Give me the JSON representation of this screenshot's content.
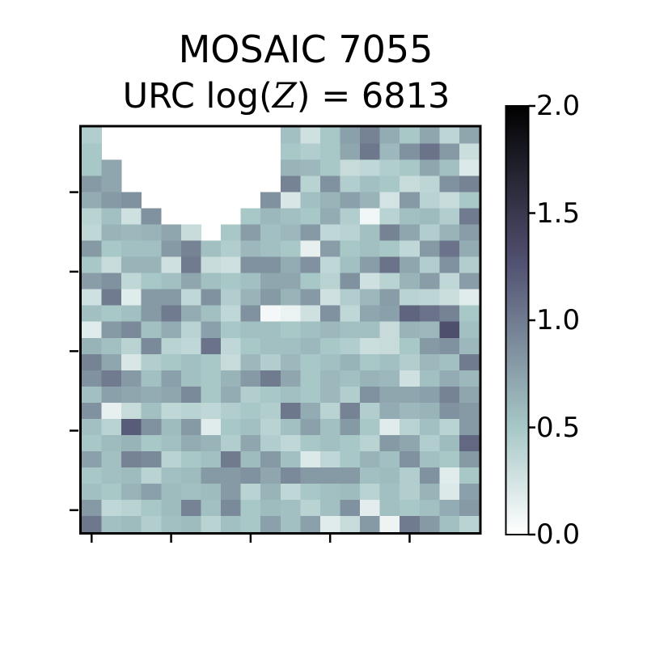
{
  "colors": {
    "background": "#ffffff",
    "text": "#000000",
    "axes_border": "#000000",
    "masked_cell": "#ffffff"
  },
  "header": {
    "title": "MOSAIC 7055",
    "subtitle_text": "URC log(𝒵) = 6813",
    "subtitle_parts": {
      "prefix": "URC log(",
      "symbol": "Z",
      "suffix": ") = 6813"
    }
  },
  "chart_data": {
    "type": "heatmap",
    "title": "MOSAIC 7055",
    "subtitle": "URC log(𝒵) = 6813",
    "colormap": "bone_r",
    "vmin": 0.0,
    "vmax": 2.0,
    "grid": {
      "rows": 25,
      "cols": 20
    },
    "axes": {
      "x_tick_count": 5,
      "y_tick_count": 5,
      "tick_labels_visible": false,
      "xlabel": "",
      "ylabel": ""
    },
    "legend_position": "right-colorbar",
    "colorbar_ticks": [
      "2.0",
      "1.5",
      "1.0",
      "0.5",
      "0.0"
    ],
    "masked_value": null,
    "values": [
      [
        0.45,
        null,
        null,
        null,
        null,
        null,
        null,
        null,
        null,
        null,
        0.55,
        0.28,
        0.5,
        0.76,
        0.95,
        0.68,
        0.5,
        0.72,
        0.38,
        0.72
      ],
      [
        0.5,
        null,
        null,
        null,
        null,
        null,
        null,
        null,
        null,
        null,
        0.5,
        0.45,
        0.5,
        0.72,
        1.02,
        0.6,
        0.85,
        1.05,
        0.8,
        0.3
      ],
      [
        0.5,
        0.72,
        null,
        null,
        null,
        null,
        null,
        null,
        null,
        null,
        0.63,
        0.6,
        0.5,
        0.32,
        0.36,
        0.45,
        0.5,
        0.72,
        0.55,
        0.2
      ],
      [
        0.8,
        0.72,
        null,
        null,
        null,
        null,
        null,
        null,
        null,
        null,
        0.95,
        0.4,
        0.85,
        0.45,
        0.55,
        0.5,
        0.32,
        0.38,
        0.85,
        0.95
      ],
      [
        0.68,
        0.8,
        0.85,
        null,
        null,
        null,
        null,
        null,
        null,
        0.85,
        0.22,
        0.55,
        0.63,
        0.76,
        0.63,
        0.25,
        0.8,
        0.4,
        0.32,
        0.5
      ],
      [
        0.4,
        0.55,
        0.28,
        0.85,
        null,
        null,
        null,
        null,
        0.5,
        0.6,
        0.55,
        0.5,
        0.68,
        0.45,
        0.08,
        0.4,
        0.55,
        0.58,
        0.45,
        1.0
      ],
      [
        0.36,
        0.63,
        0.6,
        0.63,
        0.72,
        0.32,
        null,
        0.5,
        0.78,
        0.55,
        0.6,
        0.8,
        0.36,
        0.4,
        0.55,
        0.95,
        0.72,
        0.45,
        0.63,
        0.78
      ],
      [
        0.8,
        0.5,
        0.55,
        0.55,
        0.8,
        0.95,
        0.55,
        0.45,
        0.6,
        0.55,
        0.5,
        0.14,
        0.78,
        0.5,
        0.55,
        0.5,
        0.36,
        0.8,
        1.05,
        0.68
      ],
      [
        0.5,
        0.32,
        0.63,
        0.63,
        0.28,
        1.0,
        0.32,
        0.28,
        0.85,
        0.85,
        0.68,
        0.85,
        0.36,
        0.55,
        0.78,
        1.05,
        0.72,
        0.45,
        0.85,
        0.45
      ],
      [
        0.78,
        0.85,
        0.36,
        0.5,
        0.55,
        0.72,
        0.55,
        0.5,
        0.55,
        0.72,
        0.72,
        0.5,
        0.4,
        0.85,
        0.28,
        0.4,
        0.63,
        0.78,
        0.36,
        0.78
      ],
      [
        0.28,
        1.0,
        0.18,
        0.8,
        0.8,
        0.36,
        0.85,
        0.45,
        0.63,
        0.8,
        0.63,
        0.8,
        0.28,
        0.45,
        0.6,
        0.78,
        0.4,
        0.38,
        0.3,
        0.18
      ],
      [
        0.55,
        0.5,
        0.55,
        0.8,
        1.0,
        0.68,
        0.55,
        0.36,
        0.85,
        0.06,
        0.12,
        0.28,
        0.85,
        0.36,
        0.72,
        0.76,
        1.15,
        1.05,
        0.95,
        0.5
      ],
      [
        0.18,
        0.8,
        0.9,
        0.55,
        0.68,
        0.4,
        0.76,
        0.5,
        0.55,
        0.55,
        0.5,
        0.55,
        0.6,
        0.55,
        0.55,
        0.32,
        0.63,
        0.6,
        1.3,
        0.55
      ],
      [
        0.63,
        0.55,
        0.4,
        0.9,
        0.4,
        0.36,
        1.05,
        0.36,
        0.5,
        0.55,
        0.55,
        0.6,
        0.5,
        0.45,
        0.3,
        0.32,
        0.5,
        0.8,
        0.85,
        0.6
      ],
      [
        0.95,
        0.72,
        0.22,
        0.45,
        0.5,
        0.55,
        0.5,
        0.32,
        0.6,
        0.45,
        0.6,
        0.5,
        0.55,
        0.63,
        0.5,
        0.55,
        0.45,
        0.6,
        0.55,
        1.0
      ],
      [
        0.85,
        1.0,
        0.8,
        0.55,
        0.76,
        0.55,
        0.5,
        0.63,
        0.8,
        1.0,
        0.72,
        0.5,
        0.6,
        0.55,
        0.63,
        0.6,
        0.28,
        0.55,
        0.68,
        0.6
      ],
      [
        0.55,
        0.76,
        0.72,
        0.68,
        0.72,
        0.9,
        0.5,
        0.68,
        0.45,
        0.5,
        0.55,
        0.5,
        0.6,
        0.45,
        0.85,
        0.72,
        0.72,
        0.76,
        0.95,
        0.72
      ],
      [
        0.85,
        0.14,
        0.32,
        0.55,
        0.36,
        0.4,
        0.36,
        0.45,
        0.5,
        0.45,
        1.02,
        0.68,
        0.4,
        0.95,
        0.45,
        0.68,
        0.6,
        0.63,
        0.85,
        0.8
      ],
      [
        0.55,
        0.4,
        1.2,
        0.85,
        0.58,
        0.8,
        0.18,
        0.5,
        0.55,
        0.4,
        0.55,
        0.76,
        0.55,
        0.8,
        0.5,
        0.18,
        0.4,
        0.55,
        0.4,
        0.8
      ],
      [
        0.5,
        0.58,
        0.63,
        0.5,
        0.55,
        0.68,
        0.63,
        0.45,
        0.72,
        0.45,
        0.36,
        0.5,
        0.55,
        0.5,
        0.4,
        0.8,
        0.72,
        0.45,
        0.58,
        1.12
      ],
      [
        0.76,
        0.55,
        0.95,
        0.9,
        0.4,
        0.5,
        0.55,
        1.0,
        0.58,
        0.8,
        0.55,
        0.2,
        0.36,
        0.5,
        0.63,
        0.55,
        0.85,
        0.55,
        0.5,
        0.8
      ],
      [
        0.5,
        0.55,
        0.58,
        0.4,
        0.55,
        0.58,
        0.8,
        0.8,
        0.85,
        0.72,
        0.9,
        0.8,
        0.8,
        0.8,
        0.55,
        0.58,
        0.45,
        0.85,
        0.18,
        0.5
      ],
      [
        0.55,
        0.5,
        0.63,
        0.76,
        0.58,
        0.55,
        0.58,
        0.8,
        0.4,
        0.63,
        0.36,
        0.5,
        0.55,
        0.58,
        0.4,
        0.55,
        0.45,
        0.63,
        0.2,
        0.76
      ],
      [
        0.8,
        0.36,
        0.4,
        0.5,
        0.58,
        0.95,
        0.55,
        0.9,
        0.5,
        0.58,
        0.55,
        0.4,
        0.55,
        0.85,
        0.16,
        0.55,
        0.5,
        0.55,
        0.68,
        0.8
      ],
      [
        1.02,
        0.55,
        0.58,
        0.45,
        0.55,
        0.58,
        0.4,
        0.55,
        0.5,
        0.76,
        0.55,
        0.76,
        0.18,
        0.32,
        0.8,
        0.1,
        1.0,
        0.8,
        0.55,
        0.4
      ]
    ]
  }
}
